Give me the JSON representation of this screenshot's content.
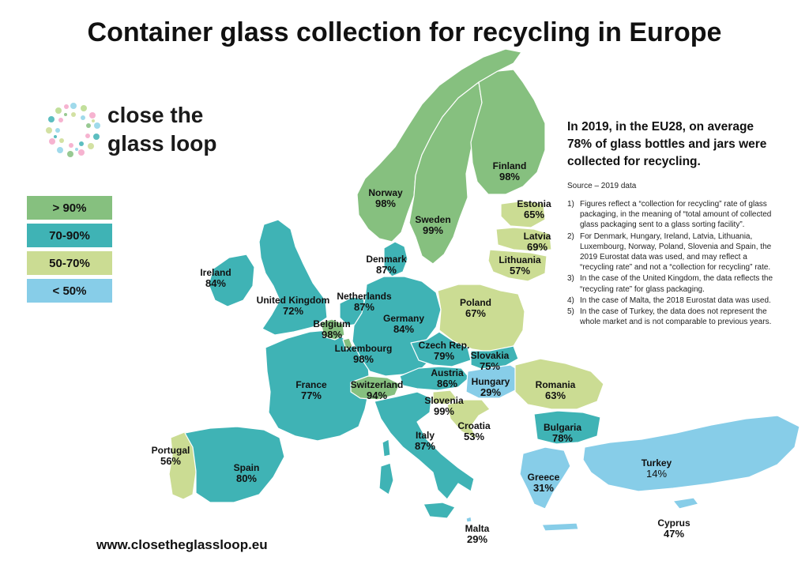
{
  "title": "Container glass collection for recycling in Europe",
  "logo": {
    "text_line1": "close the",
    "text_line2": "glass loop"
  },
  "colors": {
    "above_90": "#86c07f",
    "range_70_90": "#3fb3b5",
    "range_50_70": "#cbdc93",
    "below_50": "#87cde8",
    "sea": "#ffffff"
  },
  "legend": [
    {
      "label": "> 90%",
      "color": "#86c07f"
    },
    {
      "label": "70-90%",
      "color": "#3fb3b5"
    },
    {
      "label": "50-70%",
      "color": "#cbdc93"
    },
    {
      "label": "< 50%",
      "color": "#87cde8"
    }
  ],
  "countries": {
    "finland": {
      "name": "Finland",
      "value": "98%"
    },
    "norway": {
      "name": "Norway",
      "value": "98%"
    },
    "sweden": {
      "name": "Sweden",
      "value": "99%"
    },
    "estonia": {
      "name": "Estonia",
      "value": "65%"
    },
    "latvia": {
      "name": "Latvia",
      "value": "69%"
    },
    "lithuania": {
      "name": "Lithuania",
      "value": "57%"
    },
    "denmark": {
      "name": "Denmark",
      "value": "87%"
    },
    "ireland": {
      "name": "Ireland",
      "value": "84%"
    },
    "uk": {
      "name": "United Kingdom",
      "value": "72%"
    },
    "netherlands": {
      "name": "Netherlands",
      "value": "87%"
    },
    "belgium": {
      "name": "Belgium",
      "value": "98%"
    },
    "luxembourg": {
      "name": "Luxembourg",
      "value": "98%"
    },
    "germany": {
      "name": "Germany",
      "value": "84%"
    },
    "poland": {
      "name": "Poland",
      "value": "67%"
    },
    "czech": {
      "name": "Czech Rep.",
      "value": "79%"
    },
    "slovakia": {
      "name": "Slovakia",
      "value": "75%"
    },
    "austria": {
      "name": "Austria",
      "value": "86%"
    },
    "hungary": {
      "name": "Hungary",
      "value": "29%"
    },
    "romania": {
      "name": "Romania",
      "value": "63%"
    },
    "france": {
      "name": "France",
      "value": "77%"
    },
    "switzerland": {
      "name": "Switzerland",
      "value": "94%"
    },
    "slovenia": {
      "name": "Slovenia",
      "value": "99%"
    },
    "croatia": {
      "name": "Croatia",
      "value": "53%"
    },
    "bulgaria": {
      "name": "Bulgaria",
      "value": "78%"
    },
    "portugal": {
      "name": "Portugal",
      "value": "56%"
    },
    "spain": {
      "name": "Spain",
      "value": "80%"
    },
    "italy": {
      "name": "Italy",
      "value": "87%"
    },
    "greece": {
      "name": "Greece",
      "value": "31%"
    },
    "turkey": {
      "name": "Turkey",
      "value": "14%"
    },
    "cyprus": {
      "name": "Cyprus",
      "value": "47%"
    },
    "malta": {
      "name": "Malta",
      "value": "29%"
    }
  },
  "headline": "In 2019, in the EU28, on average 78% of glass bottles and jars were collected for recycling.",
  "source": "Source – 2019 data",
  "notes": [
    {
      "num": "1)",
      "text": "Figures reflect a “collection for recycling” rate of glass packaging, in the meaning of “total amount of collected glass packaging sent to a glass sorting facility”."
    },
    {
      "num": "2)",
      "text": "For Denmark, Hungary, Ireland, Latvia, Lithuania, Luxembourg, Norway, Poland, Slovenia and Spain, the 2019 Eurostat data was used, and may reflect a “recycling rate” and not a “collection for recycling” rate."
    },
    {
      "num": "3)",
      "text": "In the case of the United Kingdom, the data reflects the “recycling rate” for glass packaging."
    },
    {
      "num": "4)",
      "text": "In the case of Malta, the 2018 Eurostat data was used."
    },
    {
      "num": "5)",
      "text": "In the case of Turkey, the data does not represent the whole market and is not comparable to previous years."
    }
  ],
  "url": "www.closetheglassloop.eu"
}
